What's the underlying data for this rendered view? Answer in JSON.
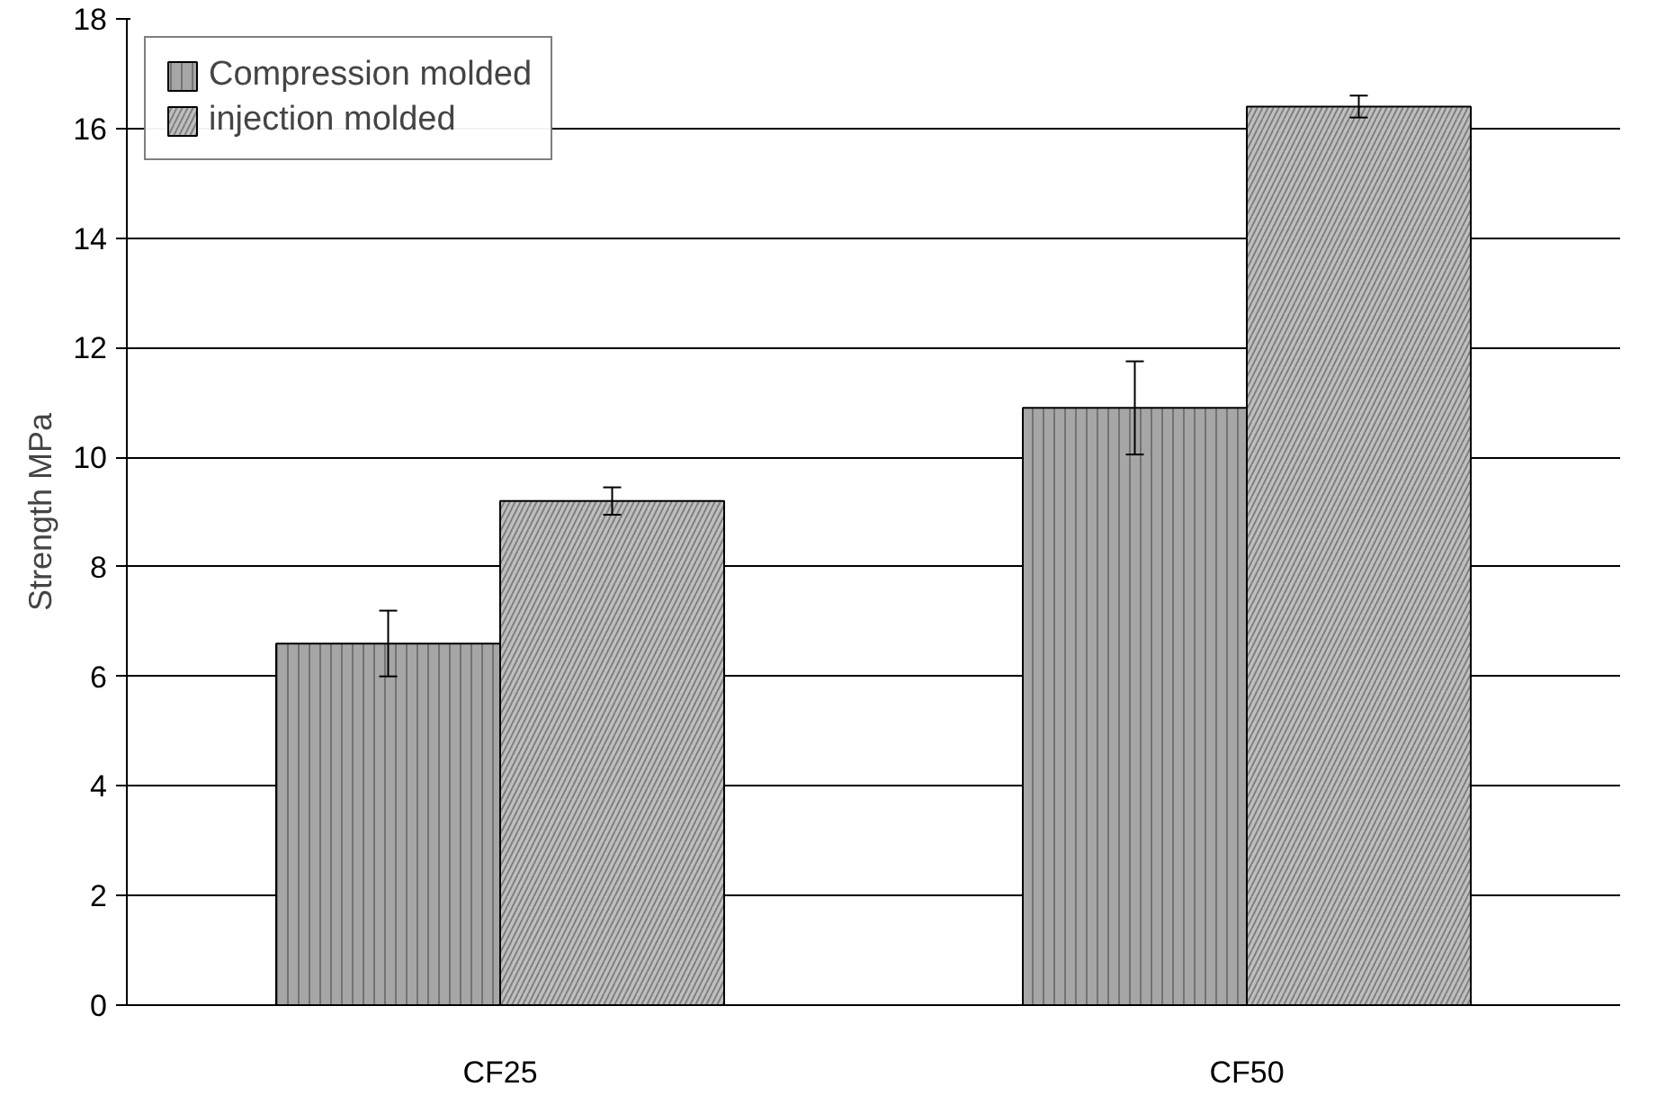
{
  "chart_data": {
    "type": "bar",
    "ylabel": "Strength MPa",
    "categories": [
      "CF25",
      "CF50"
    ],
    "series": [
      {
        "name": "Compression molded",
        "color": "#a6a6a6",
        "values": [
          6.6,
          10.9
        ],
        "errors": [
          0.6,
          0.85
        ]
      },
      {
        "name": "injection molded",
        "color": "#bfbfbf",
        "values": [
          9.2,
          16.4
        ],
        "errors": [
          0.25,
          0.2
        ]
      }
    ],
    "ylim": [
      0,
      18
    ],
    "yticks": [
      0,
      2,
      4,
      6,
      8,
      10,
      12,
      14,
      16,
      18
    ],
    "grid": "y",
    "legend": "top left"
  }
}
